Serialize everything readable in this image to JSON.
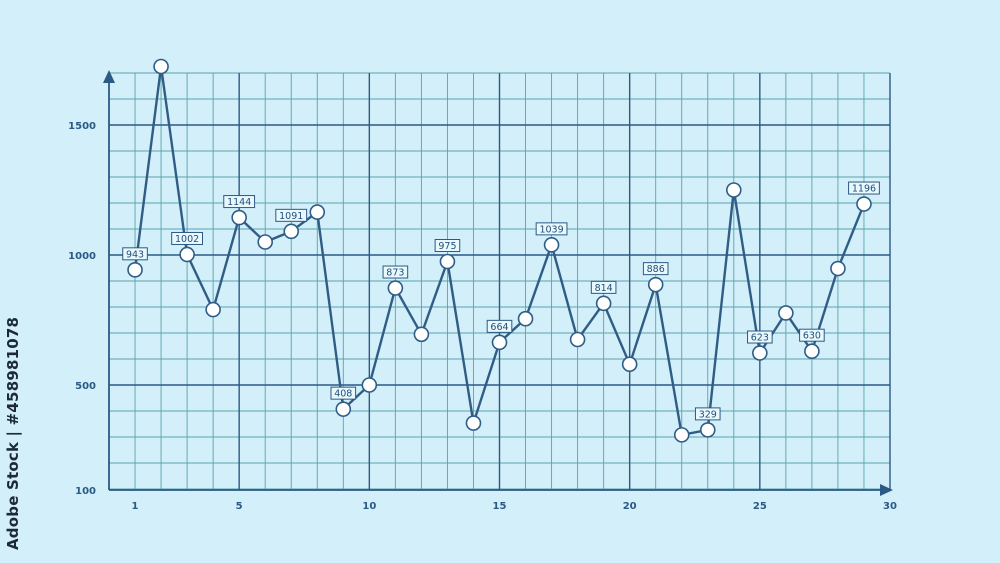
{
  "watermark": {
    "side_text": "Adobe Stock | #458981078"
  },
  "colors": {
    "background": "#d3eff9",
    "grid_minor": "#5aa3ad",
    "grid_major": "#2b5a85",
    "line": "#2f5d86",
    "marker_fill": "#ffffff"
  },
  "chart_data": {
    "type": "line",
    "title": "",
    "xlabel": "",
    "ylabel": "",
    "xlim": [
      0,
      30
    ],
    "ylim": [
      100,
      1700
    ],
    "x_ticks": [
      1,
      5,
      10,
      15,
      20,
      25,
      30
    ],
    "y_ticks": [
      100,
      500,
      1000,
      1500
    ],
    "grid": true,
    "series": [
      {
        "x": [
          1,
          2,
          3,
          4,
          5,
          6,
          7,
          8,
          9,
          10,
          11,
          12,
          13,
          14,
          15,
          16,
          17,
          18,
          19,
          20,
          21,
          22,
          23,
          24,
          25,
          26,
          27,
          28,
          29
        ],
        "values": [
          943,
          1725,
          1002,
          790,
          1144,
          1050,
          1091,
          1165,
          408,
          500,
          873,
          695,
          975,
          355,
          664,
          755,
          1039,
          675,
          814,
          580,
          886,
          310,
          329,
          1250,
          623,
          777,
          630,
          948,
          1196
        ]
      }
    ],
    "data_labels": [
      {
        "x": 1,
        "text": "943"
      },
      {
        "x": 3,
        "text": "1002"
      },
      {
        "x": 5,
        "text": "1144"
      },
      {
        "x": 7,
        "text": "1091"
      },
      {
        "x": 9,
        "text": "408"
      },
      {
        "x": 11,
        "text": "873"
      },
      {
        "x": 13,
        "text": "975"
      },
      {
        "x": 15,
        "text": "664"
      },
      {
        "x": 17,
        "text": "1039"
      },
      {
        "x": 19,
        "text": "814"
      },
      {
        "x": 21,
        "text": "886"
      },
      {
        "x": 23,
        "text": "329"
      },
      {
        "x": 25,
        "text": "623"
      },
      {
        "x": 27,
        "text": "630"
      },
      {
        "x": 29,
        "text": "1196"
      }
    ]
  }
}
